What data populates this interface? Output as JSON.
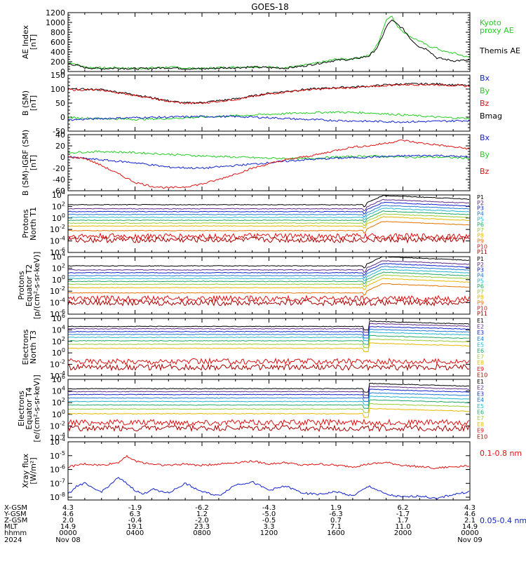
{
  "title": "GOES-18",
  "colors": {
    "black": "#000000",
    "green": "#22cc22",
    "red": "#dd1111",
    "blue": "#1122cc"
  },
  "chart_data": [
    {
      "type": "line",
      "ylabel": [
        "AE Index",
        "[nT]"
      ],
      "ylim": [
        0,
        1200
      ],
      "yticks": [
        "0",
        "200",
        "400",
        "600",
        "800",
        "1000",
        "1200"
      ],
      "legend": [
        {
          "lines": [
            "Kyoto",
            "proxy AE"
          ],
          "color": "#22cc22"
        },
        {
          "lines": [
            "Themis AE"
          ],
          "color": "#000000"
        }
      ],
      "series": [
        {
          "name": "Kyoto proxy AE",
          "color": "#22cc22",
          "x": [
            0,
            1,
            2,
            3,
            4,
            5,
            6,
            7,
            8,
            9,
            10,
            11,
            12,
            13,
            14,
            15,
            16,
            17,
            18,
            18.5,
            19,
            19.3,
            19.6,
            20,
            20.5,
            21,
            21.5,
            22,
            22.5,
            23,
            24
          ],
          "y": [
            200,
            90,
            70,
            80,
            60,
            75,
            90,
            70,
            60,
            80,
            90,
            100,
            90,
            80,
            120,
            180,
            250,
            260,
            330,
            560,
            1050,
            1150,
            950,
            820,
            700,
            620,
            520,
            480,
            400,
            380,
            280
          ]
        },
        {
          "name": "Themis AE",
          "color": "#000000",
          "x": [
            0,
            1,
            2,
            3,
            4,
            5,
            6,
            7,
            8,
            9,
            10,
            11,
            12,
            13,
            14,
            15,
            16,
            17,
            18,
            18.5,
            19,
            19.3,
            19.6,
            20,
            20.5,
            21,
            21.5,
            22,
            22.5,
            23,
            24
          ],
          "y": [
            170,
            80,
            60,
            70,
            55,
            65,
            80,
            60,
            55,
            70,
            80,
            90,
            80,
            70,
            110,
            170,
            230,
            250,
            320,
            500,
            900,
            1050,
            980,
            870,
            650,
            500,
            450,
            280,
            250,
            220,
            230
          ]
        }
      ]
    },
    {
      "type": "line",
      "ylabel": [
        "B (SM)",
        "[nT]"
      ],
      "ylim": [
        -50,
        150
      ],
      "yticks": [
        "-50",
        "0",
        "50",
        "100",
        "150"
      ],
      "legend": [
        {
          "lines": [
            "Bx"
          ],
          "color": "#1122cc"
        },
        {
          "lines": [
            "By"
          ],
          "color": "#22cc22"
        },
        {
          "lines": [
            "Bz"
          ],
          "color": "#dd1111"
        },
        {
          "lines": [
            "Bmag"
          ],
          "color": "#000000"
        }
      ],
      "series": [
        {
          "name": "Bmag",
          "color": "#000000",
          "x": [
            0,
            2,
            4,
            6,
            7,
            8,
            10,
            12,
            14,
            16,
            18,
            19,
            20,
            22,
            24
          ],
          "y": [
            100,
            98,
            80,
            58,
            50,
            52,
            65,
            85,
            98,
            105,
            110,
            115,
            118,
            118,
            112
          ]
        },
        {
          "name": "Bz",
          "color": "#dd1111",
          "x": [
            0,
            2,
            4,
            6,
            7,
            8,
            10,
            12,
            14,
            16,
            18,
            19,
            20,
            22,
            24
          ],
          "y": [
            98,
            96,
            78,
            56,
            49,
            50,
            63,
            83,
            96,
            103,
            108,
            113,
            116,
            116,
            110
          ]
        },
        {
          "name": "By",
          "color": "#22cc22",
          "x": [
            0,
            2,
            4,
            6,
            8,
            10,
            12,
            14,
            16,
            18,
            20,
            22,
            24
          ],
          "y": [
            -2,
            -5,
            -8,
            -5,
            0,
            5,
            10,
            15,
            18,
            15,
            8,
            0,
            -5
          ]
        },
        {
          "name": "Bx",
          "color": "#1122cc",
          "x": [
            0,
            2,
            4,
            6,
            8,
            10,
            12,
            14,
            16,
            18,
            20,
            22,
            24
          ],
          "y": [
            -10,
            -5,
            -2,
            0,
            2,
            2,
            -2,
            -8,
            -12,
            -15,
            -17,
            -15,
            -12
          ]
        }
      ]
    },
    {
      "type": "line",
      "ylabel": [
        "B (SM)-IGRF (SM)",
        "[nT]"
      ],
      "ylim": [
        -60,
        40
      ],
      "yticks": [
        "-60",
        "-40",
        "-20",
        "0",
        "20",
        "40"
      ],
      "legend": [
        {
          "lines": [
            "Bx"
          ],
          "color": "#1122cc"
        },
        {
          "lines": [
            "By"
          ],
          "color": "#22cc22"
        },
        {
          "lines": [
            "Bz"
          ],
          "color": "#dd1111"
        }
      ],
      "series": [
        {
          "name": "By",
          "color": "#22cc22",
          "x": [
            0,
            2,
            4,
            6,
            8,
            10,
            12,
            14,
            16,
            18,
            20,
            22,
            24
          ],
          "y": [
            8,
            10,
            8,
            5,
            2,
            0,
            -2,
            -3,
            0,
            2,
            0,
            0,
            -2
          ]
        },
        {
          "name": "Bx",
          "color": "#1122cc",
          "x": [
            0,
            2,
            4,
            6,
            8,
            10,
            12,
            14,
            16,
            18,
            20,
            22,
            24
          ],
          "y": [
            0,
            -5,
            -10,
            -18,
            -20,
            -15,
            -10,
            -5,
            -2,
            0,
            2,
            3,
            0
          ]
        },
        {
          "name": "Bz",
          "color": "#dd1111",
          "x": [
            0,
            1,
            2,
            3,
            4,
            5,
            6,
            7,
            8,
            9,
            10,
            11,
            12,
            13,
            14,
            15,
            16,
            17,
            18,
            19,
            20,
            21,
            22,
            23,
            24
          ],
          "y": [
            0,
            -2,
            -15,
            -30,
            -45,
            -52,
            -55,
            -53,
            -48,
            -40,
            -30,
            -20,
            -12,
            -5,
            0,
            5,
            12,
            18,
            20,
            25,
            30,
            25,
            22,
            18,
            15
          ]
        }
      ]
    },
    {
      "type": "line",
      "log": true,
      "ylabel": [
        "Protons",
        "North T1"
      ],
      "ylim_exp": [
        -6,
        4
      ],
      "yticks_exp": [
        -6,
        -4,
        -2,
        0,
        2,
        4
      ],
      "legend_cols": [
        {
          "name": "P1",
          "color": "#000000"
        },
        {
          "name": "P2",
          "color": "#5b2a86"
        },
        {
          "name": "P3",
          "color": "#1122cc"
        },
        {
          "name": "P4",
          "color": "#1e7ad8"
        },
        {
          "name": "P5",
          "color": "#22b5cc"
        },
        {
          "name": "P6",
          "color": "#22aa66"
        },
        {
          "name": "P7",
          "color": "#9acd32"
        },
        {
          "name": "P8",
          "color": "#e6b800"
        },
        {
          "name": "P9",
          "color": "#e67300"
        },
        {
          "name": "P10",
          "color": "#dd1111"
        },
        {
          "name": "P11",
          "color": "#aa0000"
        }
      ],
      "levels_exp": [
        2.3,
        1.6,
        1.1,
        0.6,
        0.1,
        -0.4,
        -0.9,
        -1.4,
        -2.2,
        -3.2,
        -3.8
      ]
    },
    {
      "type": "line",
      "log": true,
      "ylabel": [
        "Protons",
        "Equator T2",
        "[p/(cm²-s-sr-keV)]"
      ],
      "ylim_exp": [
        -6,
        4
      ],
      "yticks_exp": [
        -6,
        -4,
        -2,
        0,
        2,
        4
      ],
      "legend_cols": [
        {
          "name": "P1",
          "color": "#000000"
        },
        {
          "name": "P2",
          "color": "#5b2a86"
        },
        {
          "name": "P3",
          "color": "#1122cc"
        },
        {
          "name": "P4",
          "color": "#1e7ad8"
        },
        {
          "name": "P5",
          "color": "#22b5cc"
        },
        {
          "name": "P6",
          "color": "#22aa66"
        },
        {
          "name": "P7",
          "color": "#9acd32"
        },
        {
          "name": "P8",
          "color": "#e6b800"
        },
        {
          "name": "P9",
          "color": "#e67300"
        },
        {
          "name": "P10",
          "color": "#dd1111"
        },
        {
          "name": "P11",
          "color": "#aa0000"
        }
      ],
      "levels_exp": [
        2.4,
        1.7,
        1.2,
        0.7,
        0.2,
        -0.3,
        -0.8,
        -1.4,
        -2.3,
        -3.3,
        -4.0
      ]
    },
    {
      "type": "line",
      "log": true,
      "ylabel": [
        "Electrons",
        "North T3"
      ],
      "ylim_exp": [
        -4,
        6
      ],
      "yticks_exp": [
        -4,
        -2,
        0,
        2,
        4,
        6
      ],
      "legend_cols": [
        {
          "name": "E1",
          "color": "#000000"
        },
        {
          "name": "E2",
          "color": "#5b2a86"
        },
        {
          "name": "E3",
          "color": "#1122cc"
        },
        {
          "name": "E4",
          "color": "#1e7ad8"
        },
        {
          "name": "E5",
          "color": "#22b5cc"
        },
        {
          "name": "E6",
          "color": "#22aa66"
        },
        {
          "name": "E7",
          "color": "#9acd32"
        },
        {
          "name": "E8",
          "color": "#e6b800"
        },
        {
          "name": "E9",
          "color": "#dd1111"
        },
        {
          "name": "E10",
          "color": "#aa0000"
        }
      ],
      "levels_exp": [
        4.6,
        4.2,
        3.7,
        3.2,
        2.7,
        2.1,
        1.5,
        0.8,
        -1.5,
        -2.5
      ]
    },
    {
      "type": "line",
      "log": true,
      "ylabel": [
        "Electrons",
        "Equator T4",
        "[e/(cm²-s-sr-keV)]"
      ],
      "ylim_exp": [
        -4,
        6
      ],
      "yticks_exp": [
        -4,
        -2,
        0,
        2,
        4,
        6
      ],
      "legend_cols": [
        {
          "name": "E1",
          "color": "#000000"
        },
        {
          "name": "E2",
          "color": "#5b2a86"
        },
        {
          "name": "E3",
          "color": "#1122cc"
        },
        {
          "name": "E4",
          "color": "#1e7ad8"
        },
        {
          "name": "E5",
          "color": "#22b5cc"
        },
        {
          "name": "E6",
          "color": "#22aa66"
        },
        {
          "name": "E7",
          "color": "#9acd32"
        },
        {
          "name": "E8",
          "color": "#e6b800"
        },
        {
          "name": "E9",
          "color": "#dd1111"
        },
        {
          "name": "E10",
          "color": "#aa0000"
        }
      ],
      "levels_exp": [
        4.4,
        3.9,
        3.4,
        2.8,
        2.2,
        1.6,
        0.9,
        0.1,
        -1.4,
        -2.4
      ]
    },
    {
      "type": "line",
      "log": true,
      "ylabel": [
        "Xray flux",
        "[W/m²]"
      ],
      "ylim_exp": [
        -8.2,
        -4
      ],
      "yticks_exp": [
        -8,
        -7,
        -6,
        -5,
        -4
      ],
      "legend": [
        {
          "lines": [
            "0.1-0.8 nm"
          ],
          "color": "#dd1111"
        },
        {
          "lines": [
            "0.05-0.4 nm"
          ],
          "color": "#1122cc"
        }
      ],
      "series": [
        {
          "name": "0.1-0.8 nm",
          "color": "#dd1111",
          "x": [
            0,
            1,
            2,
            3,
            3.5,
            4,
            5,
            6,
            7,
            8,
            9,
            10,
            11,
            12,
            13,
            14,
            15,
            16,
            17,
            18,
            19,
            20,
            21,
            22,
            23,
            24
          ],
          "y": [
            -5.8,
            -5.6,
            -5.7,
            -5.5,
            -5.0,
            -5.4,
            -5.6,
            -5.7,
            -5.6,
            -5.7,
            -5.6,
            -5.5,
            -5.4,
            -5.6,
            -5.5,
            -5.7,
            -5.6,
            -5.7,
            -5.8,
            -5.6,
            -5.5,
            -5.7,
            -5.8,
            -5.9,
            -5.8,
            -5.7
          ]
        },
        {
          "name": "0.05-0.4 nm",
          "color": "#1122cc",
          "x": [
            0,
            0.5,
            1,
            1.5,
            2,
            2.5,
            3,
            3.5,
            4,
            4.5,
            5,
            6,
            7,
            8,
            9,
            10,
            11,
            12,
            13,
            14,
            15,
            16,
            17,
            18,
            19,
            20,
            21,
            22,
            23,
            24
          ],
          "y": [
            -7.8,
            -7.2,
            -7.0,
            -7.4,
            -7.6,
            -7.1,
            -6.6,
            -7.0,
            -7.5,
            -7.8,
            -7.4,
            -7.7,
            -7.0,
            -7.6,
            -7.9,
            -7.1,
            -6.9,
            -7.5,
            -7.2,
            -7.7,
            -7.8,
            -7.6,
            -7.9,
            -7.2,
            -7.8,
            -8.0,
            -7.9,
            -8.1,
            -7.8,
            -7.6
          ]
        }
      ]
    }
  ],
  "footer": {
    "row_labels": [
      "X-GSM",
      "Y-GSM",
      "Z-GSM",
      "MLT",
      "hhmm",
      "2024"
    ],
    "columns": [
      {
        "values": [
          "4.3",
          "4.6",
          "2.0",
          "14.9",
          "0000",
          "Nov 08"
        ]
      },
      {
        "values": [
          "-1.9",
          "6.3",
          "-0.4",
          "19.1",
          "0400",
          ""
        ]
      },
      {
        "values": [
          "-6.2",
          "1.2",
          "-2.0",
          "23.3",
          "0800",
          ""
        ]
      },
      {
        "values": [
          "-4.3",
          "-5.0",
          "-0.5",
          "3.3",
          "1200",
          ""
        ]
      },
      {
        "values": [
          "1.9",
          "-6.3",
          "0.7",
          "7.1",
          "1600",
          ""
        ]
      },
      {
        "values": [
          "6.2",
          "-1.7",
          "1.7",
          "11.0",
          "2000",
          ""
        ]
      },
      {
        "values": [
          "4.3",
          "4.6",
          "2.1",
          "14.9",
          "0000",
          "Nov 09"
        ]
      }
    ]
  }
}
